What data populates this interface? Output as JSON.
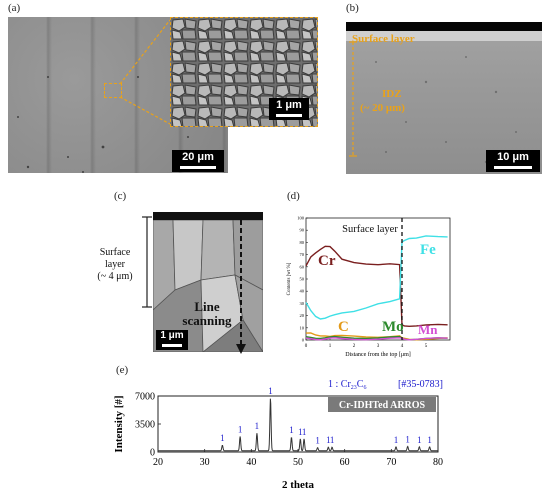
{
  "panels": {
    "a": {
      "label": "(a)",
      "scale_main": "20 μm",
      "scale_inset": "1 μm"
    },
    "b": {
      "label": "(b)",
      "surface_layer": "Surface layer",
      "idz": "IDZ",
      "idz_size": "(~ 20 μm)",
      "scale": "10 μm"
    },
    "c": {
      "label": "(c)",
      "surface_layer_line1": "Surface",
      "surface_layer_line2": "layer",
      "surface_layer_line3": "(~ 4 μm)",
      "line_scanning_1": "Line",
      "line_scanning_2": "scanning",
      "scale": "1 μm"
    },
    "d": {
      "label": "(d)",
      "title": "Surface layer",
      "ylabel": "Contents [wt %]",
      "xlabel": "Distance from the top [μm]",
      "series_labels": {
        "Cr": "Cr",
        "Fe": "Fe",
        "C": "C",
        "Mo": "Mo",
        "Mn": "Mn"
      },
      "colors": {
        "Cr": "#7a1f1f",
        "Fe": "#3fe0e6",
        "C": "#e39a1a",
        "Mo": "#2c8a2c",
        "Mn": "#d34fd3"
      }
    },
    "e": {
      "label": "(e)",
      "legend_ref": "1 : Cr",
      "legend_sub": "23",
      "legend_c": "C",
      "legend_sub2": "6",
      "legend_pdf": "[#35-0783]",
      "sample": "Cr-IDHTed ARROS",
      "peak_marker": "1"
    }
  },
  "chart_data": [
    {
      "type": "line",
      "panel": "d",
      "title": "Surface layer",
      "xlabel": "Distance from the top [μm]",
      "ylabel": "Contents [wt %]",
      "xlim": [
        0,
        6
      ],
      "ylim": [
        0,
        100
      ],
      "xticks": [
        0,
        1,
        2,
        3,
        4,
        5
      ],
      "yticks": [
        0,
        10,
        20,
        30,
        40,
        50,
        60,
        70,
        80,
        90,
        100
      ],
      "x": [
        0,
        0.2,
        0.4,
        0.6,
        0.8,
        1.0,
        1.2,
        1.5,
        2.0,
        2.5,
        3.0,
        3.5,
        3.9,
        4.0,
        4.1,
        4.3,
        4.6,
        5.0,
        5.5,
        5.9
      ],
      "series": [
        {
          "name": "Cr",
          "values": [
            60,
            68,
            72,
            75,
            77,
            76,
            72,
            66,
            64,
            63,
            62,
            62,
            61,
            12,
            12,
            12,
            12,
            12,
            12,
            12
          ]
        },
        {
          "name": "Fe",
          "values": [
            30,
            24,
            20,
            18,
            18,
            19,
            20,
            22,
            24,
            27,
            30,
            31,
            33,
            80,
            82,
            84,
            84,
            85,
            84,
            84
          ]
        },
        {
          "name": "C",
          "values": [
            5,
            5,
            4,
            4,
            4,
            3,
            3,
            3,
            3,
            3,
            3,
            3,
            3,
            1,
            1,
            1,
            1,
            1,
            1,
            1
          ]
        },
        {
          "name": "Mo",
          "values": [
            2,
            2,
            2,
            2,
            2,
            2,
            2,
            2,
            2,
            2,
            2,
            2,
            2,
            1,
            1,
            1,
            1,
            1,
            1,
            1
          ]
        },
        {
          "name": "Mn",
          "values": [
            1,
            1,
            1,
            1,
            1,
            1,
            1,
            1,
            1,
            1,
            1,
            1,
            1,
            1,
            1,
            1,
            1,
            1,
            1,
            1
          ]
        }
      ],
      "annotations": [
        {
          "type": "vline",
          "x": 4.0
        }
      ]
    },
    {
      "type": "line",
      "panel": "e",
      "xlabel": "2 theta",
      "ylabel": "Intensity [#]",
      "xlim": [
        20,
        80
      ],
      "ylim": [
        0,
        7000
      ],
      "xticks": [
        20,
        30,
        40,
        50,
        60,
        70,
        80
      ],
      "yticks": [
        0,
        3500,
        7000
      ],
      "peaks": [
        {
          "x": 33.8,
          "y": 700,
          "label": "1"
        },
        {
          "x": 37.6,
          "y": 1800,
          "label": "1"
        },
        {
          "x": 41.2,
          "y": 2200,
          "label": "1"
        },
        {
          "x": 44.1,
          "y": 6600,
          "label": "1"
        },
        {
          "x": 48.6,
          "y": 1700,
          "label": "1"
        },
        {
          "x": 50.5,
          "y": 1500,
          "label": "1"
        },
        {
          "x": 51.3,
          "y": 1500,
          "label": "1"
        },
        {
          "x": 54.2,
          "y": 400,
          "label": "1"
        },
        {
          "x": 56.5,
          "y": 450,
          "label": "1"
        },
        {
          "x": 57.3,
          "y": 450,
          "label": "1"
        },
        {
          "x": 71.0,
          "y": 500,
          "label": "1"
        },
        {
          "x": 73.5,
          "y": 550,
          "label": "1"
        },
        {
          "x": 76.0,
          "y": 500,
          "label": "1"
        },
        {
          "x": 78.2,
          "y": 500,
          "label": "1"
        }
      ],
      "baseline": 150,
      "legend": "1 : Cr23C6 [#35-0783]",
      "sample": "Cr-IDHTed ARROS"
    }
  ]
}
